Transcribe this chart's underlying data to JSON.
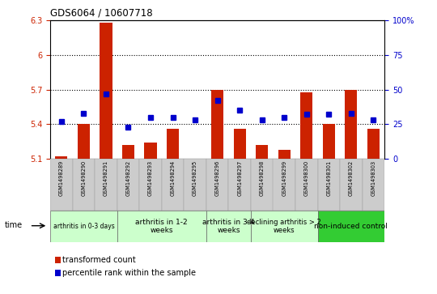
{
  "title": "GDS6064 / 10607718",
  "samples": [
    "GSM1498289",
    "GSM1498290",
    "GSM1498291",
    "GSM1498292",
    "GSM1498293",
    "GSM1498294",
    "GSM1498295",
    "GSM1498296",
    "GSM1498297",
    "GSM1498298",
    "GSM1498299",
    "GSM1498300",
    "GSM1498301",
    "GSM1498302",
    "GSM1498303"
  ],
  "red_values": [
    5.12,
    5.4,
    6.28,
    5.22,
    5.24,
    5.36,
    5.1,
    5.7,
    5.36,
    5.22,
    5.18,
    5.68,
    5.4,
    5.7,
    5.36
  ],
  "blue_values": [
    27,
    33,
    47,
    23,
    30,
    30,
    28,
    42,
    35,
    28,
    30,
    32,
    32,
    33,
    28
  ],
  "red_base": 5.1,
  "ylim_left": [
    5.1,
    6.3
  ],
  "ylim_right": [
    0,
    100
  ],
  "yticks_left": [
    5.1,
    5.4,
    5.7,
    6.0,
    6.3
  ],
  "yticks_right": [
    0,
    25,
    50,
    75,
    100
  ],
  "ytick_labels_left": [
    "5.1",
    "5.4",
    "5.7",
    "6",
    "6.3"
  ],
  "ytick_labels_right": [
    "0",
    "25",
    "50",
    "75",
    "100%"
  ],
  "hlines": [
    5.4,
    5.7,
    6.0
  ],
  "bar_color": "#cc2200",
  "dot_color": "#0000cc",
  "bar_width": 0.55,
  "groups": [
    {
      "label": "arthritis in 0-3 days",
      "indices": [
        0,
        1,
        2
      ],
      "color": "#ccffcc",
      "fontsize": 5.5
    },
    {
      "label": "arthritis in 1-2\nweeks",
      "indices": [
        3,
        4,
        5,
        6
      ],
      "color": "#ccffcc",
      "fontsize": 6.5
    },
    {
      "label": "arthritis in 3-4\nweeks",
      "indices": [
        7,
        8
      ],
      "color": "#ccffcc",
      "fontsize": 6.5
    },
    {
      "label": "declining arthritis > 2\nweeks",
      "indices": [
        9,
        10,
        11
      ],
      "color": "#ccffcc",
      "fontsize": 6.0
    },
    {
      "label": "non-induced control",
      "indices": [
        12,
        13,
        14
      ],
      "color": "#33cc33",
      "fontsize": 6.5
    }
  ],
  "legend_red_label": "transformed count",
  "legend_blue_label": "percentile rank within the sample",
  "label_bg": "#cccccc",
  "label_alt_bg": "#bbbbbb"
}
